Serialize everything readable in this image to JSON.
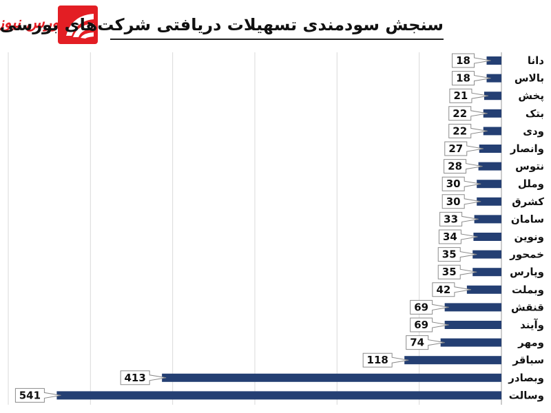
{
  "header": {
    "title": "سنجش سودمندی تسهیلات دریافتی شرکت‌های بورسی",
    "logo_text": "بورس نیوز"
  },
  "colors": {
    "bar": "#243f73",
    "accent": "#e31e24",
    "grid": "#d9d9d9"
  },
  "chart_data": {
    "type": "bar",
    "orientation": "horizontal",
    "title": "سنجش سودمندی تسهیلات دریافتی شرکت‌های بورسی",
    "xlabel": "",
    "ylabel": "",
    "xlim": [
      0,
      600
    ],
    "grid": true,
    "categories": [
      "دانا",
      "بالاس",
      "پخش",
      "بتک",
      "ودی",
      "وانصار",
      "نتوس",
      "وملل",
      "کشرق",
      "سامان",
      "ونوین",
      "خمحور",
      "وپارس",
      "وبملت",
      "قنقش",
      "وآیند",
      "ومهر",
      "سباقر",
      "وبصادر",
      "وسالت"
    ],
    "values": [
      18,
      18,
      21,
      22,
      22,
      27,
      28,
      30,
      30,
      33,
      34,
      35,
      35,
      42,
      69,
      69,
      74,
      118,
      413,
      541
    ]
  }
}
